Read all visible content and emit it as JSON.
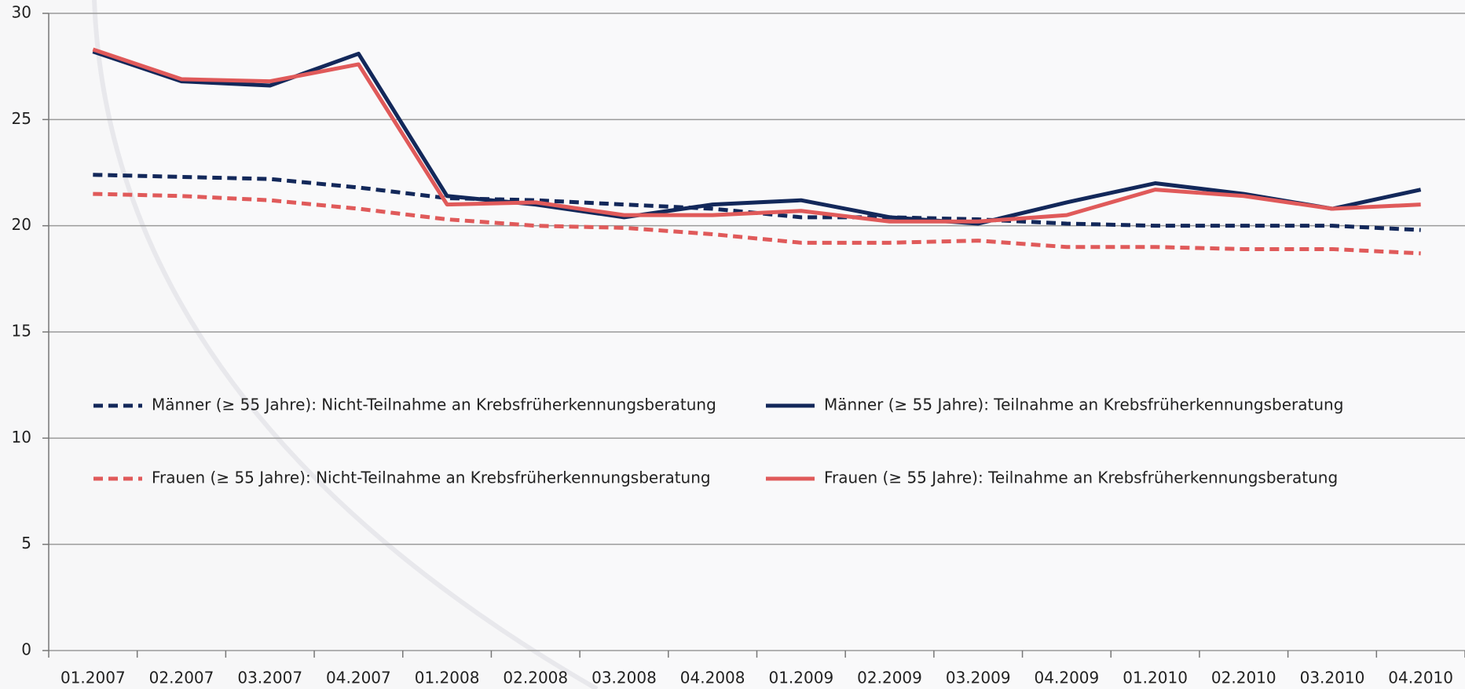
{
  "chart_data": {
    "type": "line",
    "categories": [
      "01.2007",
      "02.2007",
      "03.2007",
      "04.2007",
      "01.2008",
      "02.2008",
      "03.2008",
      "04.2008",
      "01.2009",
      "02.2009",
      "03.2009",
      "04.2009",
      "01.2010",
      "02.2010",
      "03.2010",
      "04.2010"
    ],
    "series": [
      {
        "name": "Männer (≥ 55 Jahre): Nicht-Teilnahme an Krebsfrüherkennungsberatung",
        "color": "#13285a",
        "dashed": true,
        "values": [
          22.4,
          22.3,
          22.2,
          21.8,
          21.3,
          21.2,
          21.0,
          20.8,
          20.4,
          20.4,
          20.3,
          20.1,
          20.0,
          20.0,
          20.0,
          19.8
        ]
      },
      {
        "name": "Männer (≥ 55 Jahre): Teilnahme an Krebsfrüherkennungsberatung",
        "color": "#13285a",
        "dashed": false,
        "values": [
          28.2,
          26.8,
          26.6,
          28.1,
          21.4,
          21.0,
          20.4,
          21.0,
          21.2,
          20.4,
          20.1,
          21.1,
          22.0,
          21.5,
          20.8,
          21.7
        ]
      },
      {
        "name": "Frauen (≥ 55 Jahre): Nicht-Teilnahme an Krebsfrüherkennungsberatung",
        "color": "#e05a5a",
        "dashed": true,
        "values": [
          21.5,
          21.4,
          21.2,
          20.8,
          20.3,
          20.0,
          19.9,
          19.6,
          19.2,
          19.2,
          19.3,
          19.0,
          19.0,
          18.9,
          18.9,
          18.7
        ]
      },
      {
        "name": "Frauen (≥ 55 Jahre): Teilnahme an Krebsfrüherkennungsberatung",
        "color": "#e05a5a",
        "dashed": false,
        "values": [
          28.3,
          26.9,
          26.8,
          27.6,
          21.0,
          21.1,
          20.5,
          20.5,
          20.7,
          20.2,
          20.2,
          20.5,
          21.7,
          21.4,
          20.8,
          21.0
        ]
      }
    ],
    "ylim": [
      0,
      30
    ],
    "yticks": [
      0,
      5,
      10,
      15,
      20,
      25,
      30
    ],
    "grid": true
  }
}
